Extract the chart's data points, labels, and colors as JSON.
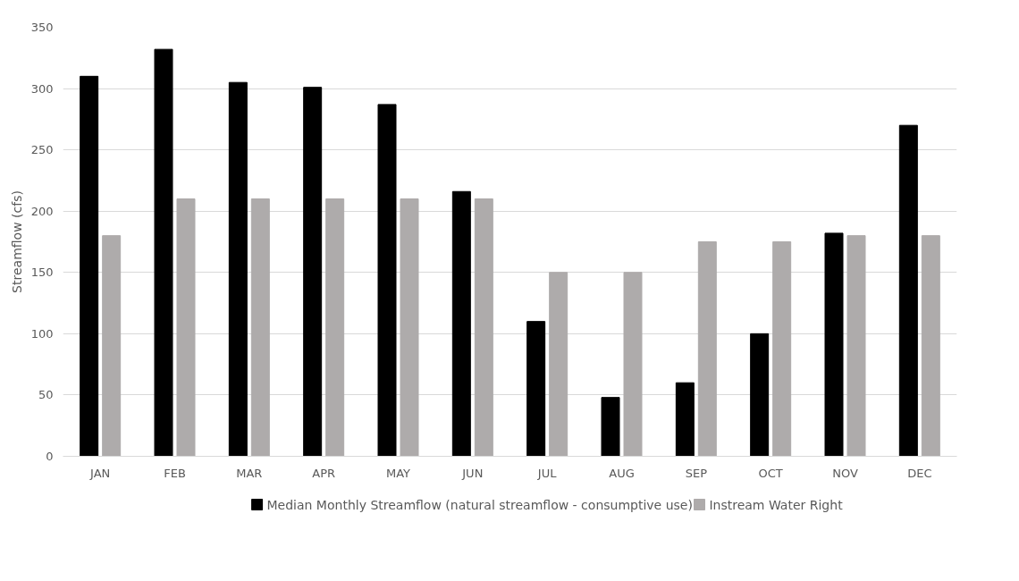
{
  "chart_data": {
    "type": "bar",
    "ylabel": "Streamflow (cfs)",
    "categories": [
      "JAN",
      "FEB",
      "MAR",
      "APR",
      "MAY",
      "JUN",
      "JUL",
      "AUG",
      "SEP",
      "OCT",
      "NOV",
      "DEC"
    ],
    "series": [
      {
        "name": "Median Monthly Streamflow (natural streamflow - consumptive use)",
        "color": "#000000",
        "values": [
          310,
          332,
          305,
          301,
          287,
          216,
          110,
          48,
          60,
          100,
          182,
          270
        ]
      },
      {
        "name": "Instream Water Right",
        "color": "#aeabab",
        "values": [
          180,
          210,
          210,
          210,
          210,
          210,
          150,
          150,
          175,
          175,
          180,
          180
        ]
      }
    ],
    "ylim": [
      0,
      350
    ],
    "yticks": [
      0,
      50,
      100,
      150,
      200,
      250,
      300,
      350
    ],
    "grid": "y",
    "legend": "bottom"
  }
}
